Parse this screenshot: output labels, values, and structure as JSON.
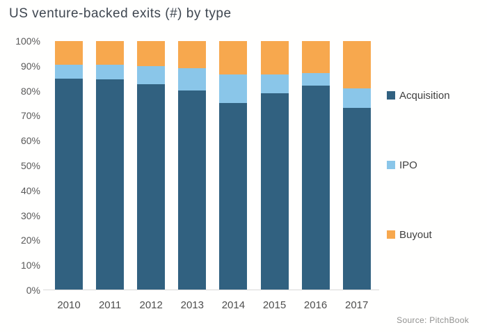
{
  "chart": {
    "title": "US venture-backed exits (#) by type",
    "source": "Source: PitchBook"
  },
  "colors": {
    "acquisition": "#316180",
    "ipo": "#8ac6e9",
    "buyout": "#f7a84e",
    "axis_line": "#d8d8d8"
  },
  "chart_data": {
    "type": "bar",
    "subtype": "stacked-100-percent",
    "title": "US venture-backed exits (#) by type",
    "categories": [
      "2010",
      "2011",
      "2012",
      "2013",
      "2014",
      "2015",
      "2016",
      "2017"
    ],
    "series": [
      {
        "name": "Acquisition",
        "color": "#316180",
        "values": [
          85,
          84.5,
          82.5,
          80,
          75,
          79,
          82,
          73
        ]
      },
      {
        "name": "IPO",
        "color": "#8ac6e9",
        "values": [
          5.5,
          6,
          7.5,
          9,
          11.5,
          7.5,
          5,
          8
        ]
      },
      {
        "name": "Buyout",
        "color": "#f7a84e",
        "values": [
          9.5,
          9.5,
          10,
          11,
          13.5,
          13.5,
          13,
          19
        ]
      }
    ],
    "y_ticks": [
      "0%",
      "10%",
      "20%",
      "30%",
      "40%",
      "50%",
      "60%",
      "70%",
      "80%",
      "90%",
      "100%"
    ],
    "ylim": [
      0,
      100
    ],
    "xlabel": "",
    "ylabel": "",
    "grid": false,
    "legend_position": "right",
    "source": "Source: PitchBook"
  }
}
